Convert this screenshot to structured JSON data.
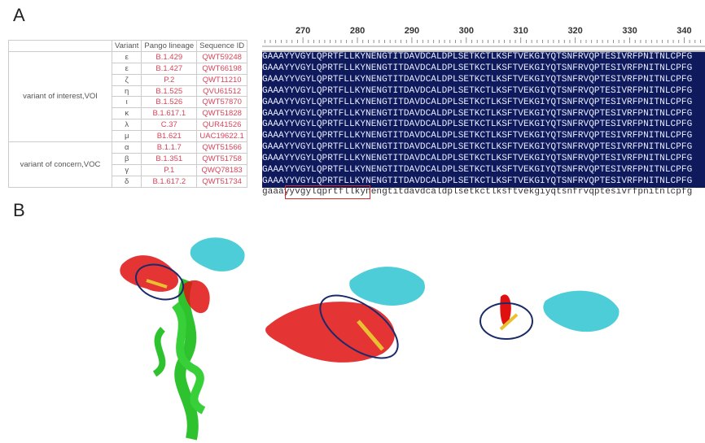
{
  "panels": {
    "a": "A",
    "b": "B"
  },
  "table": {
    "headers": [
      "",
      "Variant",
      "Pango lineage",
      "Sequence ID"
    ],
    "groups": [
      {
        "label": "variant of interest,VOI"
      },
      {
        "label": "variant of concern,VOC"
      }
    ],
    "rows": [
      {
        "variant": "ε",
        "lineage": "B.1.429",
        "id": "QWT59248"
      },
      {
        "variant": "ε",
        "lineage": "B.1.427",
        "id": "QWT66198"
      },
      {
        "variant": "ζ",
        "lineage": "P.2",
        "id": "QWT11210"
      },
      {
        "variant": "η",
        "lineage": "B.1.525",
        "id": "QVU61512"
      },
      {
        "variant": "ι",
        "lineage": "B.1.526",
        "id": "QWT57870"
      },
      {
        "variant": "κ",
        "lineage": "B.1.617.1",
        "id": "QWT51828"
      },
      {
        "variant": "λ",
        "lineage": "C.37",
        "id": "QUR41526"
      },
      {
        "variant": "μ",
        "lineage": "B1.621",
        "id": "UAC19622.1"
      },
      {
        "variant": "α",
        "lineage": "B.1.1.7",
        "id": "QWT51566"
      },
      {
        "variant": "β",
        "lineage": "B.1.351",
        "id": "QWT51758"
      },
      {
        "variant": "γ",
        "lineage": "P.1",
        "id": "QWQ78183"
      },
      {
        "variant": "δ",
        "lineage": "B.1.617.2",
        "id": "QWT51734"
      }
    ]
  },
  "alignment": {
    "ruler_labels": [
      "270",
      "280",
      "290",
      "300",
      "310",
      "320",
      "330",
      "340"
    ],
    "sequence": "GAAAYYVGYLQPRTFLLKYNENGTITDAVDCALDPLSETKCTLKSFTVEKGIYQTSNFRVQPTESIVRFPNITNLCPFG",
    "consensus": "gaaayyvgylqprtfllkynengtitdavdcaldplsetkctlksftvekgiyqtsnfrvqptesivrfpnitnlcpfg",
    "highlighted_region": "yyvgylqprtfllky",
    "colors": {
      "background": "#0f1a5c",
      "highlight_box": "#d62a2a",
      "lineage_text": "#d9455a"
    }
  },
  "structure_colors": {
    "helix_chain": "#2fc22f",
    "rbd_red": "#e01010",
    "rbd_cyan": "#2ec4d0",
    "epitope": "#e8c030",
    "circle": "#1a2a6a"
  }
}
